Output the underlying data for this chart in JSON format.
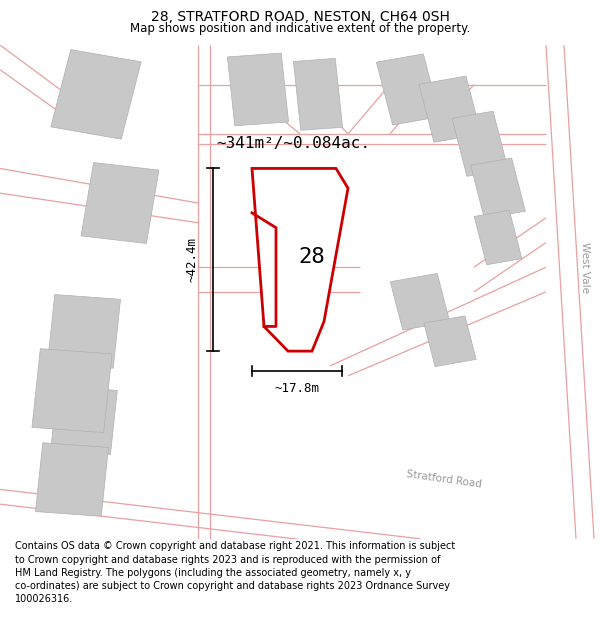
{
  "title": "28, STRATFORD ROAD, NESTON, CH64 0SH",
  "subtitle": "Map shows position and indicative extent of the property.",
  "footer": "Contains OS data © Crown copyright and database right 2021. This information is subject to Crown copyright and database rights 2023 and is reproduced with the permission of HM Land Registry. The polygons (including the associated geometry, namely x, y co-ordinates) are subject to Crown copyright and database rights 2023 Ordnance Survey 100026316.",
  "area_label": "~341m²/~0.084ac.",
  "width_label": "~17.8m",
  "height_label": "~42.4m",
  "number_label": "28",
  "map_bg": "#f7f3f3",
  "road_color": "#e8a0a0",
  "building_color": "#c8c8c8",
  "building_edge": "#b0b0b0",
  "highlight_color": "#cc0000",
  "road_label_stratford": "Stratford Road",
  "road_label_west": "West Vale",
  "title_fontsize": 10,
  "subtitle_fontsize": 8.5,
  "footer_fontsize": 7.0
}
